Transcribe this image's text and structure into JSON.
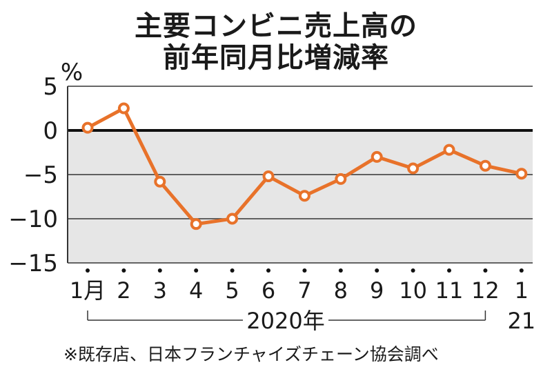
{
  "title_line1": "主要コンビニ売上高の",
  "title_line2": "前年同月比増減率",
  "unit": "%",
  "source_note": "※既存店、日本フランチャイズチェーン協会調べ",
  "colors": {
    "line": "#e8722a",
    "band": "#e6e6e6",
    "zero": "#111111",
    "grid": "#333333"
  },
  "chart_data": {
    "type": "line",
    "title": "主要コンビニ売上高の前年同月比増減率",
    "ylabel": "%",
    "ylim": [
      -15,
      5
    ],
    "yticks": [
      5,
      0,
      -5,
      -10,
      -15
    ],
    "ytick_labels": [
      "5",
      "0",
      "−5",
      "−10",
      "−15"
    ],
    "categories": [
      "1月",
      "2",
      "3",
      "4",
      "5",
      "6",
      "7",
      "8",
      "9",
      "10",
      "11",
      "12",
      "1"
    ],
    "year_labels": {
      "2020": "2020年",
      "2021": "21"
    },
    "values": [
      0.3,
      2.5,
      -5.8,
      -10.6,
      -10.0,
      -5.2,
      -7.4,
      -5.5,
      -3.0,
      -4.3,
      -2.2,
      -4.0,
      -4.9
    ],
    "shaded_range": [
      -15,
      0
    ],
    "grid": true
  }
}
